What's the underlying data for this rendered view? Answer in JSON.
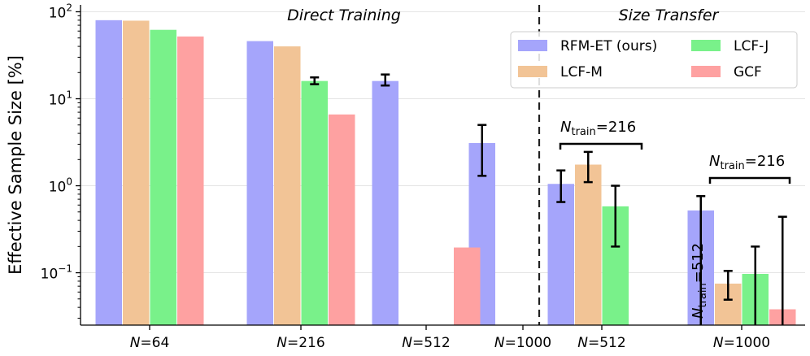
{
  "chart_data": {
    "type": "bar",
    "scale": "log",
    "ylabel": "Effective Sample Size [%]",
    "ylim": [
      0.025,
      120
    ],
    "yticks": [
      {
        "value": 0.1,
        "base": "10",
        "exp": "−1"
      },
      {
        "value": 1,
        "base": "10",
        "exp": "0"
      },
      {
        "value": 10,
        "base": "10",
        "exp": "1"
      },
      {
        "value": 100,
        "base": "10",
        "exp": "2"
      }
    ],
    "sections": [
      {
        "label": "Direct Training"
      },
      {
        "label": "Size Transfer"
      }
    ],
    "groups": [
      {
        "label": "=64",
        "N": "N"
      },
      {
        "label": "=216",
        "N": "N"
      },
      {
        "label": "=512",
        "N": "N"
      },
      {
        "label": "=1000",
        "N": "N"
      },
      {
        "label": "=512",
        "N": "N"
      },
      {
        "label": "=1000",
        "N": "N"
      }
    ],
    "series": [
      {
        "name": "RFM-ET (ours)",
        "color": "#a5a5fb",
        "values": [
          80,
          46,
          16,
          3.1,
          1.05,
          0.52
        ],
        "err_lo": [
          null,
          null,
          14.2,
          1.3,
          0.65,
          null
        ],
        "err_hi": [
          null,
          null,
          19,
          5,
          1.5,
          0.76
        ]
      },
      {
        "name": "LCF-M",
        "color": "#f2c496",
        "values": [
          79,
          40,
          null,
          null,
          1.75,
          0.075
        ],
        "err_lo": [
          null,
          null,
          null,
          null,
          1.1,
          0.049
        ],
        "err_hi": [
          null,
          null,
          null,
          null,
          2.45,
          0.105
        ]
      },
      {
        "name": "LCF-J",
        "color": "#79f18a",
        "values": [
          62,
          16,
          null,
          null,
          0.58,
          0.097
        ],
        "err_lo": [
          null,
          14.7,
          null,
          null,
          0.2,
          null
        ],
        "err_hi": [
          null,
          17.6,
          null,
          null,
          1.0,
          0.2
        ]
      },
      {
        "name": "GCF",
        "color": "#fea1a1",
        "values": [
          52,
          6.6,
          0.195,
          null,
          null,
          0.038
        ],
        "err_lo": [
          null,
          null,
          null,
          null,
          null,
          null
        ],
        "err_hi": [
          null,
          null,
          null,
          null,
          null,
          0.44
        ]
      }
    ],
    "annotations": [
      {
        "text": "=216",
        "N": "N",
        "sub": "train"
      },
      {
        "text": "=216",
        "N": "N",
        "sub": "train"
      },
      {
        "text": "=512",
        "N": "N",
        "sub": "train"
      }
    ],
    "legend": "top-right"
  }
}
